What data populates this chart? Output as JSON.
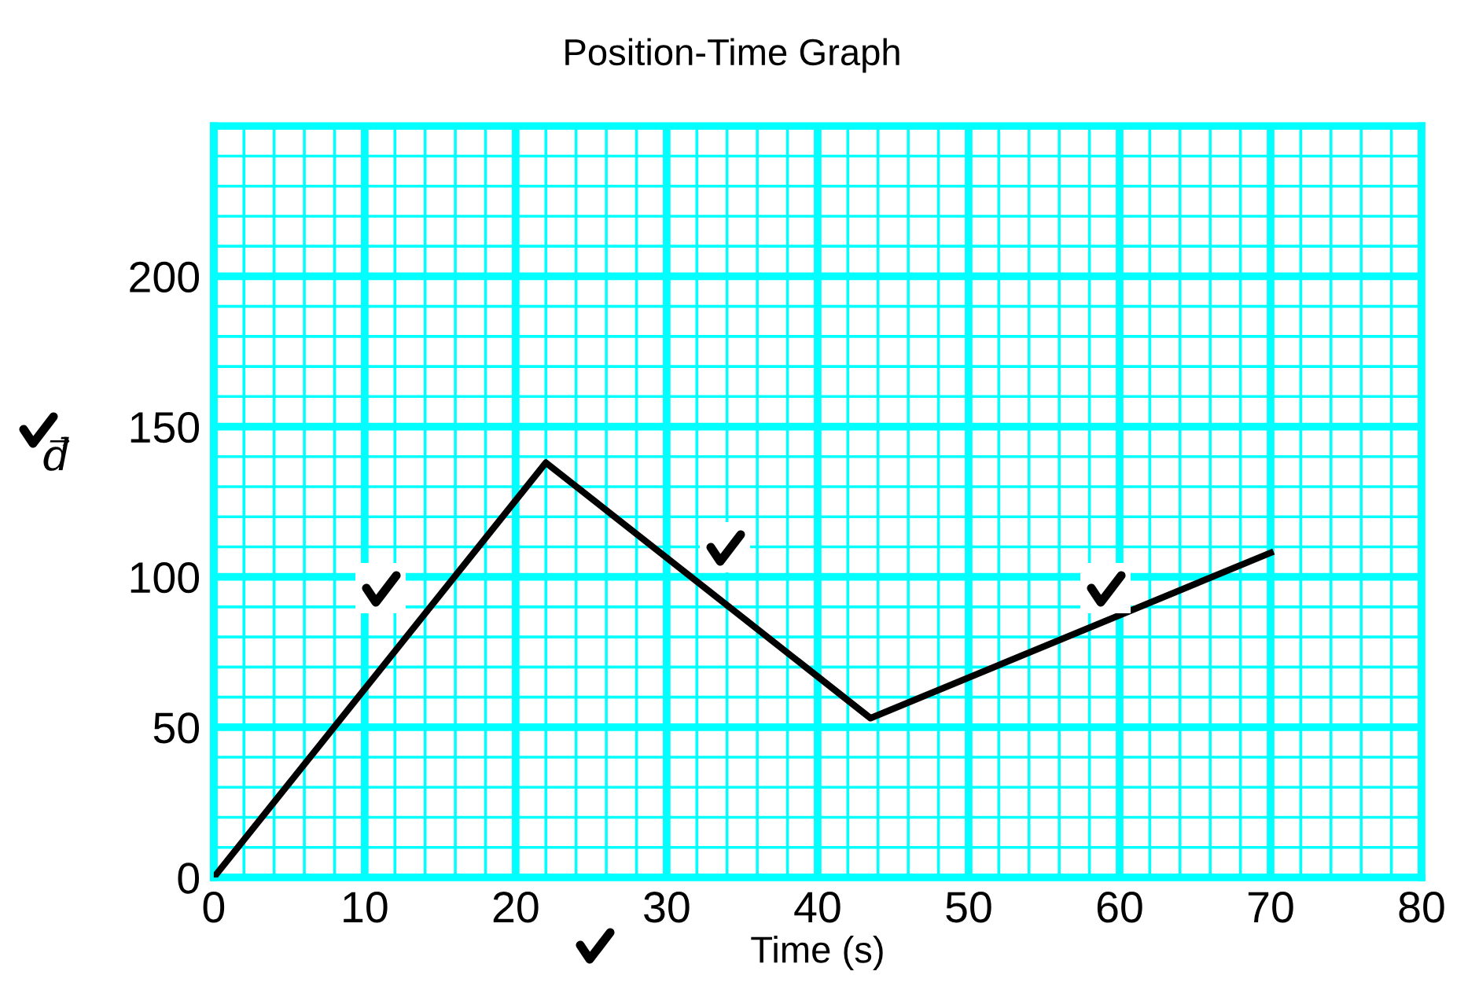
{
  "chart_data": {
    "type": "line",
    "title": "Position-Time Graph",
    "xlabel": "Time (s)",
    "ylabel": "d⃗",
    "x": [
      0,
      22,
      43.5,
      70
    ],
    "series": [
      {
        "color": "#000000",
        "values": [
          0,
          138,
          53,
          108
        ]
      }
    ],
    "xlim": [
      0,
      80
    ],
    "xticks": [
      0,
      {
        "value": 2,
        "label": null
      },
      {
        "value": 4,
        "label": null
      },
      {
        "value": 6,
        "label": null
      },
      {
        "value": 8,
        "label": null
      },
      10,
      {
        "value": 12,
        "label": null
      },
      {
        "value": 14,
        "label": null
      },
      {
        "value": 16,
        "label": null
      },
      {
        "value": 18,
        "label": null
      },
      20,
      {
        "value": 22,
        "label": null
      },
      {
        "value": 24,
        "label": null
      },
      {
        "value": 26,
        "label": null
      },
      {
        "value": 28,
        "label": null
      },
      30,
      {
        "value": 32,
        "label": null
      },
      {
        "value": 34,
        "label": null
      },
      {
        "value": 36,
        "label": null
      },
      {
        "value": 38,
        "label": null
      },
      40,
      {
        "value": 42,
        "label": null
      },
      {
        "value": 44,
        "label": null
      },
      {
        "value": 46,
        "label": null
      },
      {
        "value": 48,
        "label": null
      },
      50,
      {
        "value": 52,
        "label": null
      },
      {
        "value": 54,
        "label": null
      },
      {
        "value": 56,
        "label": null
      },
      {
        "value": 58,
        "label": null
      },
      60,
      {
        "value": 62,
        "label": null
      },
      {
        "value": 64,
        "label": null
      },
      {
        "value": 66,
        "label": null
      },
      {
        "value": 68,
        "label": null
      },
      70,
      {
        "value": 72,
        "label": null
      },
      {
        "value": 74,
        "label": null
      },
      {
        "value": 76,
        "label": null
      },
      {
        "value": 78,
        "label": null
      },
      80
    ],
    "ylim": [
      0,
      250
    ],
    "yticks": [
      0,
      {
        "value": 10,
        "label": null
      },
      {
        "value": 20,
        "label": null
      },
      {
        "value": 30,
        "label": null
      },
      {
        "value": 40,
        "label": null
      },
      50,
      {
        "value": 60,
        "label": null
      },
      {
        "value": 70,
        "label": null
      },
      {
        "value": 80,
        "label": null
      },
      {
        "value": 90,
        "label": null
      },
      100,
      {
        "value": 110,
        "label": null
      },
      {
        "value": 120,
        "label": null
      },
      {
        "value": 130,
        "label": null
      },
      {
        "value": 140,
        "label": null
      },
      150,
      {
        "value": 160,
        "label": null
      },
      {
        "value": 170,
        "label": null
      },
      {
        "value": 180,
        "label": null
      },
      {
        "value": 190,
        "label": null
      },
      200,
      {
        "value": 210,
        "label": null
      },
      {
        "value": 220,
        "label": null
      },
      {
        "value": 230,
        "label": null
      },
      {
        "value": 240,
        "label": null
      }
    ],
    "grid": true,
    "marker": "none",
    "line_style": "solid"
  }
}
